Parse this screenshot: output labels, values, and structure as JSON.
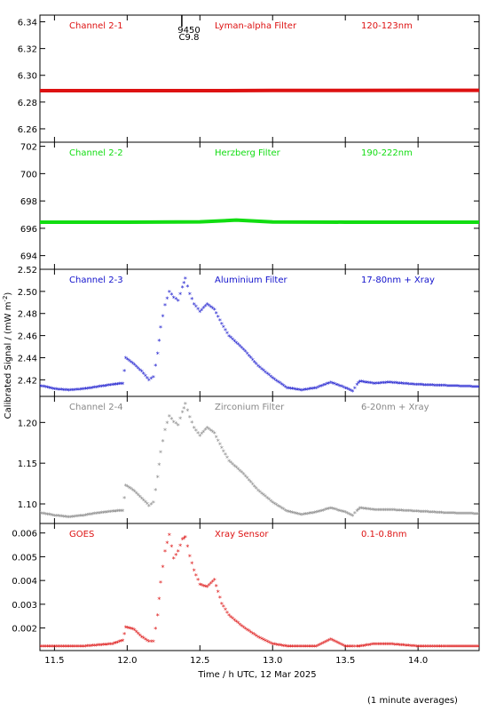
{
  "figure": {
    "ylabel": "Calibrated Signal / (mW m",
    "ylabel_sup": "-2",
    "ylabel_close": ")",
    "xlabel": "Time / h UTC, 12 Mar 2025",
    "footnote": "(1 minute averages)",
    "marker_top": "9450",
    "marker_bottom": "C9.8"
  },
  "chart_data": [
    {
      "type": "line",
      "labels": [
        "Channel 2-1",
        "Lyman-alpha Filter",
        "120-123nm"
      ],
      "color": "#dd1111",
      "marker": "line",
      "ylim": [
        6.25,
        6.345
      ],
      "yticks": [
        6.26,
        6.28,
        6.3,
        6.32,
        6.34
      ],
      "ytick_labels": [
        "6.26",
        "6.28",
        "6.30",
        "6.32",
        "6.34"
      ],
      "xlim": [
        11.4,
        14.42
      ],
      "grid": false,
      "x": [
        11.4,
        12.0,
        12.5,
        13.0,
        13.5,
        14.0,
        14.42
      ],
      "y": [
        6.2885,
        6.2885,
        6.2885,
        6.2887,
        6.2887,
        6.2888,
        6.2888
      ]
    },
    {
      "type": "line",
      "labels": [
        "Channel 2-2",
        "Herzberg Filter",
        "190-222nm"
      ],
      "color": "#11dd11",
      "marker": "line",
      "ylim": [
        693.0,
        702.3
      ],
      "yticks": [
        694,
        696,
        698,
        700,
        702
      ],
      "ytick_labels": [
        "694",
        "696",
        "698",
        "700",
        "702"
      ],
      "xlim": [
        11.4,
        14.42
      ],
      "grid": false,
      "x": [
        11.4,
        12.0,
        12.5,
        12.75,
        13.0,
        13.5,
        14.0,
        14.42
      ],
      "y": [
        696.45,
        696.45,
        696.47,
        696.6,
        696.46,
        696.45,
        696.45,
        696.45
      ]
    },
    {
      "type": "scatter",
      "labels": [
        "Channel 2-3",
        "Aluminium Filter",
        "17-80nm + Xray"
      ],
      "color": "#1111cc",
      "marker": "star",
      "ylim": [
        2.405,
        2.52
      ],
      "yticks": [
        2.42,
        2.44,
        2.46,
        2.48,
        2.5,
        2.52
      ],
      "ytick_labels": [
        "2.42",
        "2.44",
        "2.46",
        "2.48",
        "2.50",
        "2.52"
      ],
      "xlim": [
        11.4,
        14.42
      ],
      "grid": false,
      "x": [
        11.4,
        11.5,
        11.6,
        11.7,
        11.8,
        11.9,
        11.97,
        11.99,
        12.05,
        12.1,
        12.15,
        12.18,
        12.21,
        12.23,
        12.26,
        12.29,
        12.32,
        12.35,
        12.38,
        12.4,
        12.43,
        12.46,
        12.5,
        12.55,
        12.6,
        12.65,
        12.7,
        12.8,
        12.9,
        13.0,
        13.1,
        13.2,
        13.3,
        13.4,
        13.5,
        13.55,
        13.58,
        13.6,
        13.7,
        13.8,
        14.0,
        14.2,
        14.42
      ],
      "y": [
        2.414,
        2.411,
        2.41,
        2.411,
        2.413,
        2.415,
        2.416,
        2.439,
        2.433,
        2.427,
        2.419,
        2.422,
        2.443,
        2.467,
        2.487,
        2.499,
        2.494,
        2.491,
        2.503,
        2.511,
        2.497,
        2.488,
        2.481,
        2.488,
        2.483,
        2.47,
        2.459,
        2.447,
        2.432,
        2.421,
        2.412,
        2.41,
        2.412,
        2.417,
        2.412,
        2.409,
        2.415,
        2.418,
        2.416,
        2.417,
        2.415,
        2.414,
        2.413
      ]
    },
    {
      "type": "scatter",
      "labels": [
        "Channel 2-4",
        "Zirconium Filter",
        "6-20nm + Xray"
      ],
      "color": "#888888",
      "marker": "star",
      "ylim": [
        1.076,
        1.232
      ],
      "yticks": [
        1.1,
        1.15,
        1.2
      ],
      "ytick_labels": [
        "1.10",
        "1.15",
        "1.20"
      ],
      "xlim": [
        11.4,
        14.42
      ],
      "grid": false,
      "x": [
        11.4,
        11.5,
        11.6,
        11.7,
        11.8,
        11.9,
        11.97,
        11.99,
        12.05,
        12.1,
        12.15,
        12.18,
        12.21,
        12.23,
        12.26,
        12.29,
        12.32,
        12.35,
        12.38,
        12.4,
        12.43,
        12.46,
        12.5,
        12.55,
        12.6,
        12.65,
        12.7,
        12.8,
        12.9,
        13.0,
        13.1,
        13.2,
        13.3,
        13.4,
        13.5,
        13.55,
        13.58,
        13.6,
        13.7,
        13.8,
        14.0,
        14.2,
        14.42
      ],
      "y": [
        1.088,
        1.085,
        1.083,
        1.085,
        1.088,
        1.09,
        1.091,
        1.122,
        1.115,
        1.106,
        1.097,
        1.101,
        1.132,
        1.163,
        1.19,
        1.207,
        1.2,
        1.196,
        1.212,
        1.222,
        1.206,
        1.193,
        1.183,
        1.193,
        1.186,
        1.168,
        1.152,
        1.136,
        1.116,
        1.101,
        1.09,
        1.086,
        1.089,
        1.094,
        1.089,
        1.085,
        1.091,
        1.094,
        1.092,
        1.092,
        1.09,
        1.088,
        1.087
      ]
    },
    {
      "type": "scatter",
      "labels": [
        "GOES",
        "Xray Sensor",
        "0.1-0.8nm"
      ],
      "color": "#dd1111",
      "marker": "star",
      "ylim": [
        0.00105,
        0.0064
      ],
      "yticks": [
        0.002,
        0.003,
        0.004,
        0.005,
        0.006
      ],
      "ytick_labels": [
        "0.002",
        "0.003",
        "0.004",
        "0.005",
        "0.006"
      ],
      "xlim": [
        11.4,
        14.42
      ],
      "grid": false,
      "x": [
        11.4,
        11.5,
        11.6,
        11.7,
        11.8,
        11.9,
        11.97,
        11.99,
        12.05,
        12.1,
        12.15,
        12.18,
        12.21,
        12.23,
        12.26,
        12.29,
        12.32,
        12.35,
        12.38,
        12.4,
        12.43,
        12.46,
        12.5,
        12.55,
        12.6,
        12.65,
        12.7,
        12.8,
        12.9,
        13.0,
        13.1,
        13.2,
        13.3,
        13.4,
        13.5,
        13.55,
        13.58,
        13.6,
        13.7,
        13.8,
        14.0,
        14.2,
        14.42
      ],
      "y": [
        0.0012,
        0.0012,
        0.0012,
        0.0012,
        0.00125,
        0.0013,
        0.00145,
        0.002,
        0.0019,
        0.0016,
        0.0014,
        0.0014,
        0.0025,
        0.0039,
        0.0052,
        0.0059,
        0.0049,
        0.0052,
        0.0057,
        0.0058,
        0.005,
        0.0044,
        0.0038,
        0.0037,
        0.004,
        0.003,
        0.0025,
        0.002,
        0.0016,
        0.0013,
        0.0012,
        0.0012,
        0.0012,
        0.0015,
        0.0012,
        0.0012,
        0.0012,
        0.0012,
        0.0013,
        0.0013,
        0.0012,
        0.0012,
        0.0012
      ]
    }
  ],
  "xaxis": {
    "xlim": [
      11.4,
      14.42
    ],
    "ticks": [
      11.5,
      12.0,
      12.5,
      13.0,
      13.5,
      14.0
    ],
    "tick_labels": [
      "11.5",
      "12.0",
      "12.5",
      "13.0",
      "13.5",
      "14.0"
    ],
    "marker_x": 12.4
  }
}
